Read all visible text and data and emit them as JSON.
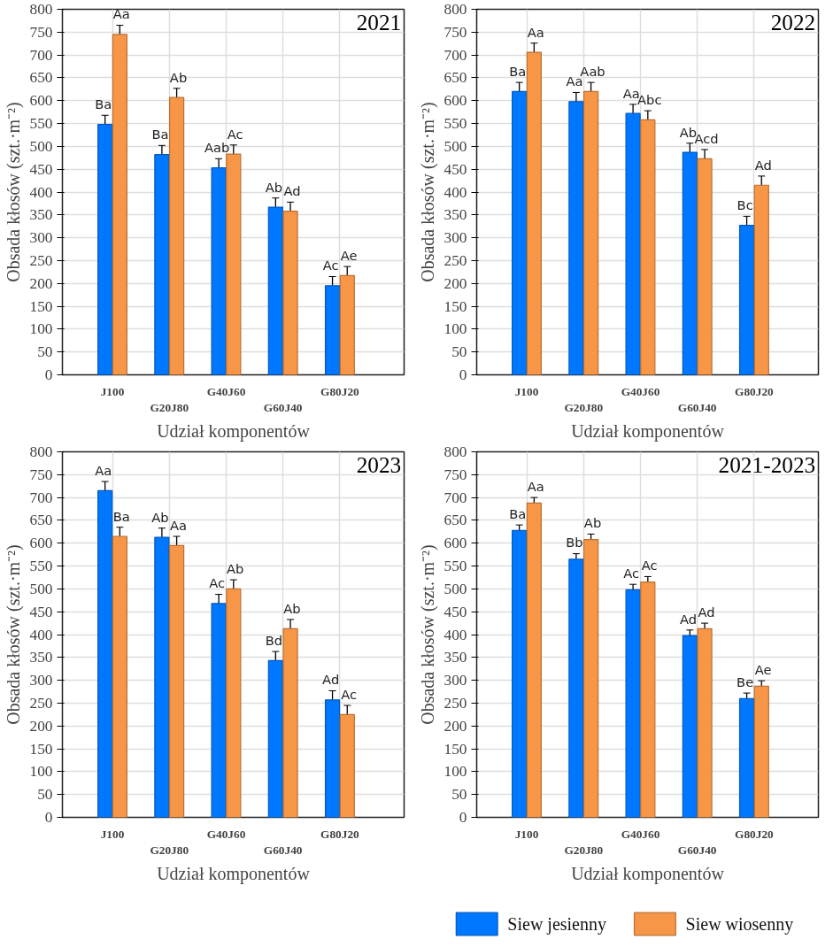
{
  "chart_data": [
    {
      "type": "bar",
      "title": "2021",
      "xlabel": "Udział komponentów",
      "ylabel": "Obsada kłosów (szt.·m⁻²)",
      "categories": [
        "J100",
        "G20J80",
        "G40J60",
        "G60J40",
        "G80J20"
      ],
      "ylim": [
        0,
        800
      ],
      "yticks": [
        0,
        50,
        100,
        150,
        200,
        250,
        300,
        350,
        400,
        450,
        500,
        550,
        600,
        650,
        700,
        750,
        800
      ],
      "grid": true,
      "series": [
        {
          "color": "#0077ff",
          "values": [
            548,
            482,
            453,
            367,
            195
          ],
          "errors": [
            20,
            20,
            20,
            20,
            20
          ],
          "value_labels": [
            "Ba",
            "Ba",
            "Aab",
            "Ab",
            "Ac"
          ]
        },
        {
          "color": "#f79646",
          "values": [
            745,
            607,
            483,
            358,
            217
          ],
          "errors": [
            20,
            20,
            20,
            20,
            20
          ],
          "value_labels": [
            "Aa",
            "Ab",
            "Ac",
            "Ad",
            "Ae"
          ]
        }
      ]
    },
    {
      "type": "bar",
      "title": "2022",
      "xlabel": "Udział komponentów",
      "ylabel": "Obsada kłosów (szt.·m⁻²)",
      "categories": [
        "J100",
        "G20J80",
        "G40J60",
        "G60J40",
        "G80J20"
      ],
      "ylim": [
        0,
        800
      ],
      "yticks": [
        0,
        50,
        100,
        150,
        200,
        250,
        300,
        350,
        400,
        450,
        500,
        550,
        600,
        650,
        700,
        750,
        800
      ],
      "grid": true,
      "series": [
        {
          "color": "#0077ff",
          "values": [
            620,
            598,
            572,
            487,
            327
          ],
          "errors": [
            20,
            20,
            20,
            20,
            20
          ],
          "value_labels": [
            "Ba",
            "Aa",
            "Aa",
            "Ab",
            "Bc"
          ]
        },
        {
          "color": "#f79646",
          "values": [
            706,
            620,
            558,
            473,
            415
          ],
          "errors": [
            20,
            20,
            20,
            20,
            20
          ],
          "value_labels": [
            "Aa",
            "Aab",
            "Abc",
            "Acd",
            "Ad"
          ]
        }
      ]
    },
    {
      "type": "bar",
      "title": "2023",
      "xlabel": "Udział komponentów",
      "ylabel": "Obsada kłosów (szt.·m⁻²)",
      "categories": [
        "J100",
        "G20J80",
        "G40J60",
        "G60J40",
        "G80J20"
      ],
      "ylim": [
        0,
        800
      ],
      "yticks": [
        0,
        50,
        100,
        150,
        200,
        250,
        300,
        350,
        400,
        450,
        500,
        550,
        600,
        650,
        700,
        750,
        800
      ],
      "grid": true,
      "series": [
        {
          "color": "#0077ff",
          "values": [
            715,
            613,
            468,
            343,
            257
          ],
          "errors": [
            20,
            20,
            20,
            20,
            20
          ],
          "value_labels": [
            "Aa",
            "Ab",
            "Ac",
            "Bd",
            "Ad"
          ]
        },
        {
          "color": "#f79646",
          "values": [
            615,
            595,
            500,
            413,
            225
          ],
          "errors": [
            20,
            20,
            20,
            20,
            20
          ],
          "value_labels": [
            "Ba",
            "Aa",
            "Ab",
            "Ab",
            "Ac"
          ]
        }
      ]
    },
    {
      "type": "bar",
      "title": "2021-2023",
      "xlabel": "Udział komponentów",
      "ylabel": "Obsada kłosów (szt.·m⁻²)",
      "categories": [
        "J100",
        "G20J80",
        "G40J60",
        "G60J40",
        "G80J20"
      ],
      "ylim": [
        0,
        800
      ],
      "yticks": [
        0,
        50,
        100,
        150,
        200,
        250,
        300,
        350,
        400,
        450,
        500,
        550,
        600,
        650,
        700,
        750,
        800
      ],
      "grid": true,
      "legend": "bottom",
      "series": [
        {
          "name": "Siew jesienny",
          "color": "#0077ff",
          "values": [
            628,
            565,
            498,
            398,
            260
          ],
          "errors": [
            12,
            12,
            12,
            12,
            12
          ],
          "value_labels": [
            "Ba",
            "Bb",
            "Ac",
            "Ad",
            "Be"
          ]
        },
        {
          "name": "Siew wiosenny",
          "color": "#f79646",
          "values": [
            688,
            608,
            515,
            413,
            287
          ],
          "errors": [
            12,
            12,
            12,
            12,
            12
          ],
          "value_labels": [
            "Aa",
            "Ab",
            "Ac",
            "Ad",
            "Ae"
          ]
        }
      ]
    }
  ]
}
